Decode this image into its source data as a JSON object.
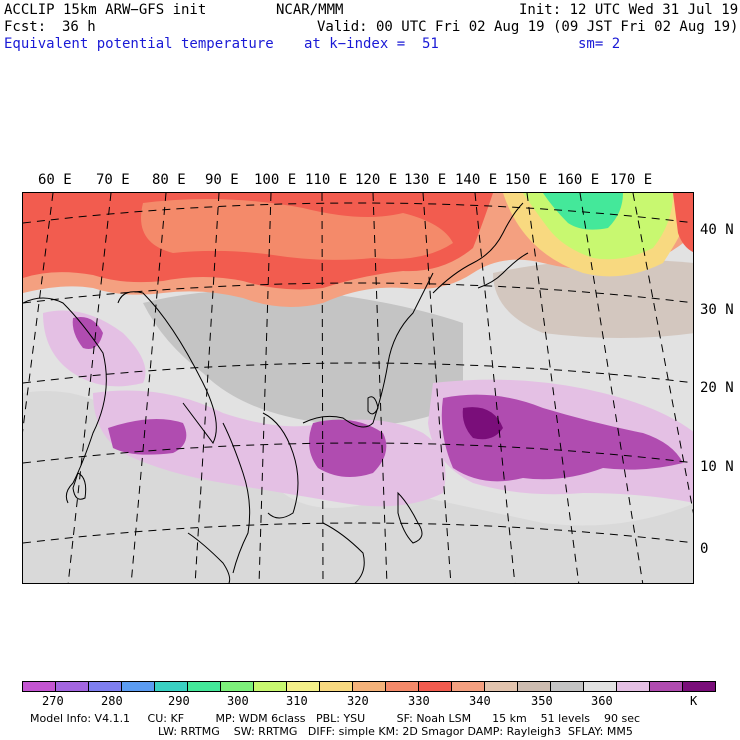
{
  "header": {
    "model": "ACCLIP 15km ARW−GFS init",
    "org": "NCAR/MMM",
    "init": "Init: 12 UTC Wed 31 Jul 19",
    "fcst_label": "Fcst:",
    "fcst_value": "36 h",
    "valid": "Valid: 00 UTC Fri 02 Aug 19 (09 JST Fri 02 Aug 19)",
    "field": "Equivalent potential temperature",
    "level": "at k−index =  51",
    "smooth": "sm= 2"
  },
  "map": {
    "lon_labels": [
      "60 E",
      "70 E",
      "80 E",
      "90 E",
      "100 E",
      "110 E",
      "120 E",
      "130 E",
      "140 E",
      "150 E",
      "160 E",
      "170 E"
    ],
    "lat_labels": [
      "40 N",
      "30 N",
      "20 N",
      "10 N",
      "0"
    ]
  },
  "colorbar": {
    "colors": [
      "#c455d2",
      "#a366e0",
      "#7f7ff0",
      "#5c9cf2",
      "#3ad1c3",
      "#44e89a",
      "#7df07b",
      "#c8f870",
      "#f4f08a",
      "#f8d980",
      "#f4b27a",
      "#f48a6a",
      "#f25c4f",
      "#f4a080",
      "#e2c4ae",
      "#cdbcb0",
      "#c4c4c4",
      "#e2e2e2",
      "#e4c0e4",
      "#b04cb0",
      "#7a0e7a"
    ],
    "labels": [
      "270",
      "280",
      "290",
      "300",
      "310",
      "320",
      "330",
      "340",
      "350",
      "360"
    ],
    "unit": "K"
  },
  "footer": {
    "line1": "Model Info: V4.1.1     CU: KF         MP: WDM 6class   PBL: YSU         SF: Noah LSM      15 km    51 levels    90 sec",
    "line2": "LW: RRTMG    SW: RRTMG   DIFF: simple KM: 2D Smagor DAMP: Rayleigh3  SFLAY: MM5"
  }
}
